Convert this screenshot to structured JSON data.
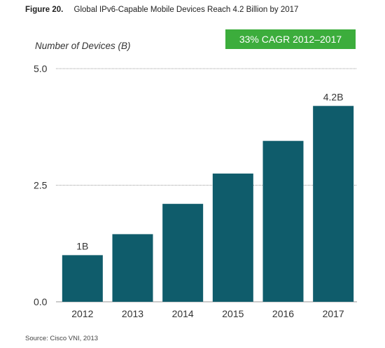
{
  "figure": {
    "number": "Figure 20.",
    "title": "Global IPv6-Capable Mobile Devices Reach 4.2 Billion by 2017",
    "source": "Source: Cisco VNI, 2013",
    "badge": "33% CAGR 2012–2017"
  },
  "colors": {
    "bar": "#0f5c6b",
    "badge": "#3cad3c",
    "gridline": "#999999"
  },
  "chart_data": {
    "type": "bar",
    "title": "Global IPv6-Capable Mobile Devices Reach 4.2 Billion by 2017",
    "ylabel": "Number of Devices (B)",
    "xlabel": "",
    "categories": [
      "2012",
      "2013",
      "2014",
      "2015",
      "2016",
      "2017"
    ],
    "values": [
      1.0,
      1.45,
      2.1,
      2.75,
      3.45,
      4.2
    ],
    "ylim": [
      0,
      5
    ],
    "yticks": [
      "0.0",
      "2.5",
      "5.0"
    ],
    "data_labels": [
      "1B",
      "",
      "",
      "",
      "",
      "4.2B"
    ],
    "grid": true
  }
}
